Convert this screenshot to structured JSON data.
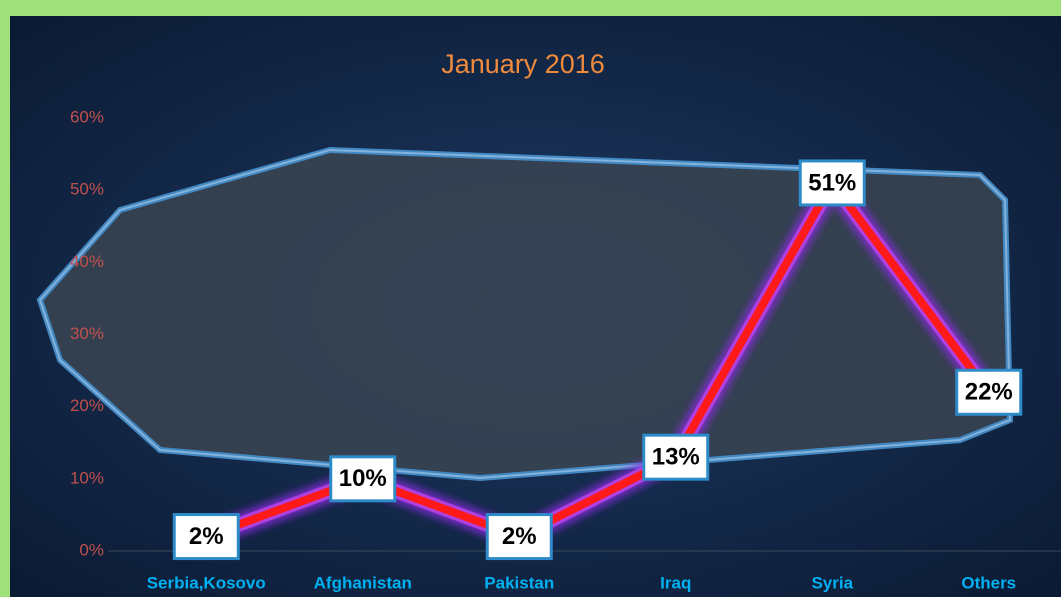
{
  "chart_data": {
    "type": "line",
    "title": "January 2016",
    "categories": [
      "Serbia,Kosovo",
      "Afghanistan",
      "Pakistan",
      "Iraq",
      "Syria",
      "Others"
    ],
    "values": [
      2,
      10,
      2,
      13,
      51,
      22
    ],
    "value_labels": [
      "2%",
      "10%",
      "2%",
      "13%",
      "51%",
      "22%"
    ],
    "color": "#ff1a1a",
    "ylim": [
      0,
      60
    ],
    "yticks": [
      {
        "value": 0,
        "label": "0%"
      },
      {
        "value": 10,
        "label": "10%"
      },
      {
        "value": 20,
        "label": "20%"
      },
      {
        "value": 30,
        "label": "30%"
      },
      {
        "value": 40,
        "label": "40%"
      },
      {
        "value": 50,
        "label": "50%"
      },
      {
        "value": 60,
        "label": "60%"
      }
    ],
    "grid": false
  }
}
